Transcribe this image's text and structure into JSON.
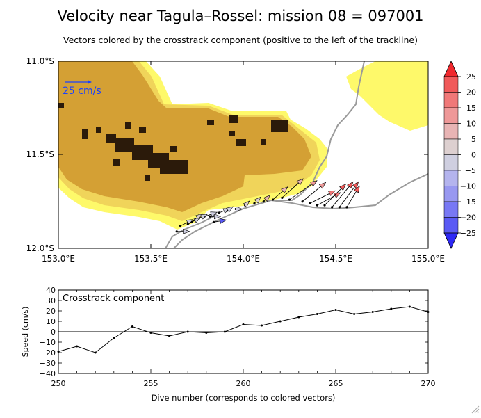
{
  "title": "Velocity near Tagula–Rossel: mission 08 = 097001",
  "subtitle": "Vectors colored by the crosstrack component (positive to the left of the trackline)",
  "chart_data": [
    {
      "type": "map",
      "x_ticks": [
        "153.0°E",
        "153.5°E",
        "154.0°E",
        "154.5°E",
        "155.0°E"
      ],
      "y_ticks": [
        "11.0°S",
        "11.5°S",
        "12.0°S"
      ],
      "xlim": [
        153.0,
        155.0
      ],
      "ylim": [
        -12.0,
        -11.0
      ],
      "scale_label": "25 cm/s",
      "scale_cm_s": 25,
      "colorbar_ticks": [
        "25",
        "20",
        "15",
        "10",
        "5",
        "0",
        "−5",
        "−10",
        "−15",
        "−20",
        "−25"
      ],
      "colorbar_colors": [
        "#f05a5a",
        "#f07878",
        "#ee9898",
        "#e8b4b4",
        "#ddd0d0",
        "#cfcfe0",
        "#b4b4ee",
        "#9898f0",
        "#7878f4",
        "#5a5af4"
      ],
      "colorbar_cap_top": "#f0282d",
      "colorbar_cap_bottom": "#2d28f4",
      "land_fill_colors": {
        "shallow": "#fef96a",
        "mid": "#f0d45a",
        "deep": "#d4a034",
        "reef": "#2b1a0a"
      },
      "vectors": [
        {
          "lon": 153.64,
          "lat": -11.91,
          "u": 6,
          "v": 0,
          "c": -1
        },
        {
          "lon": 153.66,
          "lat": -11.88,
          "u": 6,
          "v": 3,
          "c": 0
        },
        {
          "lon": 153.7,
          "lat": -11.87,
          "u": 6,
          "v": 3,
          "c": 0
        },
        {
          "lon": 153.72,
          "lat": -11.86,
          "u": 5,
          "v": 4,
          "c": 2
        },
        {
          "lon": 153.76,
          "lat": -11.84,
          "u": 4,
          "v": 2,
          "c": 0
        },
        {
          "lon": 153.79,
          "lat": -11.83,
          "u": 6,
          "v": 2,
          "c": -1
        },
        {
          "lon": 153.82,
          "lat": -11.83,
          "u": 5,
          "v": 0,
          "c": -1
        },
        {
          "lon": 153.84,
          "lat": -11.86,
          "u": 6,
          "v": 1,
          "c": -20
        },
        {
          "lon": 153.87,
          "lat": -11.81,
          "u": 5,
          "v": 2,
          "c": -1
        },
        {
          "lon": 153.91,
          "lat": -11.8,
          "u": 3,
          "v": 2,
          "c": -2
        },
        {
          "lon": 153.96,
          "lat": -11.79,
          "u": 3,
          "v": 0,
          "c": 0
        },
        {
          "lon": 154.01,
          "lat": -11.77,
          "u": 2,
          "v": 2,
          "c": 5
        },
        {
          "lon": 154.06,
          "lat": -11.76,
          "u": 3,
          "v": 3,
          "c": 5
        },
        {
          "lon": 154.11,
          "lat": -11.75,
          "u": 3,
          "v": 3,
          "c": 6
        },
        {
          "lon": 154.16,
          "lat": -11.74,
          "u": 7,
          "v": 6,
          "c": 8
        },
        {
          "lon": 154.21,
          "lat": -11.73,
          "u": 10,
          "v": 9,
          "c": 10
        },
        {
          "lon": 154.25,
          "lat": -11.74,
          "u": 13,
          "v": 9,
          "c": 12
        },
        {
          "lon": 154.32,
          "lat": -11.75,
          "u": 11,
          "v": 9,
          "c": 15
        },
        {
          "lon": 154.36,
          "lat": -11.76,
          "u": 12,
          "v": 6,
          "c": 17
        },
        {
          "lon": 154.4,
          "lat": -11.77,
          "u": 11,
          "v": 6,
          "c": 19
        },
        {
          "lon": 154.44,
          "lat": -11.77,
          "u": 10,
          "v": 10,
          "c": 21
        },
        {
          "lon": 154.48,
          "lat": -11.78,
          "u": 10,
          "v": 12,
          "c": 23
        },
        {
          "lon": 154.52,
          "lat": -11.78,
          "u": 9,
          "v": 12,
          "c": 24
        },
        {
          "lon": 154.56,
          "lat": -11.78,
          "u": 6,
          "v": 10,
          "c": 22
        }
      ]
    },
    {
      "type": "line",
      "title": "Crosstrack component",
      "xlabel": "Dive number (corresponds to colored vectors)",
      "ylabel": "Speed (cm/s)",
      "xlim": [
        250,
        270
      ],
      "ylim": [
        -40,
        40
      ],
      "x_ticks": [
        250,
        255,
        260,
        265,
        270
      ],
      "y_ticks": [
        40,
        30,
        20,
        10,
        0,
        -10,
        -20,
        -30,
        -40
      ],
      "x": [
        250,
        251,
        252,
        253,
        254,
        255,
        256,
        257,
        258,
        259,
        260,
        261,
        262,
        263,
        264,
        265,
        266,
        267,
        268,
        269,
        270
      ],
      "values": [
        -19,
        -14,
        -20,
        -6,
        5,
        -1,
        -4,
        0,
        -1,
        0,
        7,
        6,
        10,
        14,
        17,
        21,
        17,
        19,
        22,
        24,
        19
      ]
    }
  ]
}
